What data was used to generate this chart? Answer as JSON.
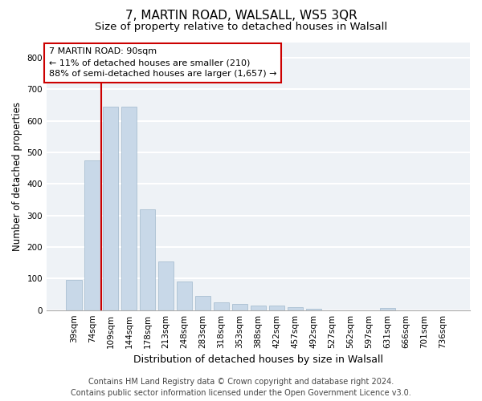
{
  "title": "7, MARTIN ROAD, WALSALL, WS5 3QR",
  "subtitle": "Size of property relative to detached houses in Walsall",
  "xlabel": "Distribution of detached houses by size in Walsall",
  "ylabel": "Number of detached properties",
  "categories": [
    "39sqm",
    "74sqm",
    "109sqm",
    "144sqm",
    "178sqm",
    "213sqm",
    "248sqm",
    "283sqm",
    "318sqm",
    "353sqm",
    "388sqm",
    "422sqm",
    "457sqm",
    "492sqm",
    "527sqm",
    "562sqm",
    "597sqm",
    "631sqm",
    "666sqm",
    "701sqm",
    "736sqm"
  ],
  "values": [
    95,
    475,
    645,
    645,
    320,
    155,
    90,
    45,
    25,
    20,
    15,
    15,
    10,
    5,
    0,
    0,
    0,
    8,
    0,
    0,
    0
  ],
  "bar_color": "#c8d8e8",
  "bar_edgecolor": "#a0b8cc",
  "vline_color": "#cc0000",
  "vline_x_index": 1.5,
  "annotation_line1": "7 MARTIN ROAD: 90sqm",
  "annotation_line2": "← 11% of detached houses are smaller (210)",
  "annotation_line3": "88% of semi-detached houses are larger (1,657) →",
  "annotation_box_color": "white",
  "annotation_box_edgecolor": "#cc0000",
  "ylim": [
    0,
    850
  ],
  "yticks": [
    0,
    100,
    200,
    300,
    400,
    500,
    600,
    700,
    800
  ],
  "footer_line1": "Contains HM Land Registry data © Crown copyright and database right 2024.",
  "footer_line2": "Contains public sector information licensed under the Open Government Licence v3.0.",
  "background_color": "#eef2f6",
  "grid_color": "white",
  "title_fontsize": 11,
  "subtitle_fontsize": 9.5,
  "xlabel_fontsize": 9,
  "ylabel_fontsize": 8.5,
  "tick_fontsize": 7.5,
  "annotation_fontsize": 8,
  "footer_fontsize": 7
}
